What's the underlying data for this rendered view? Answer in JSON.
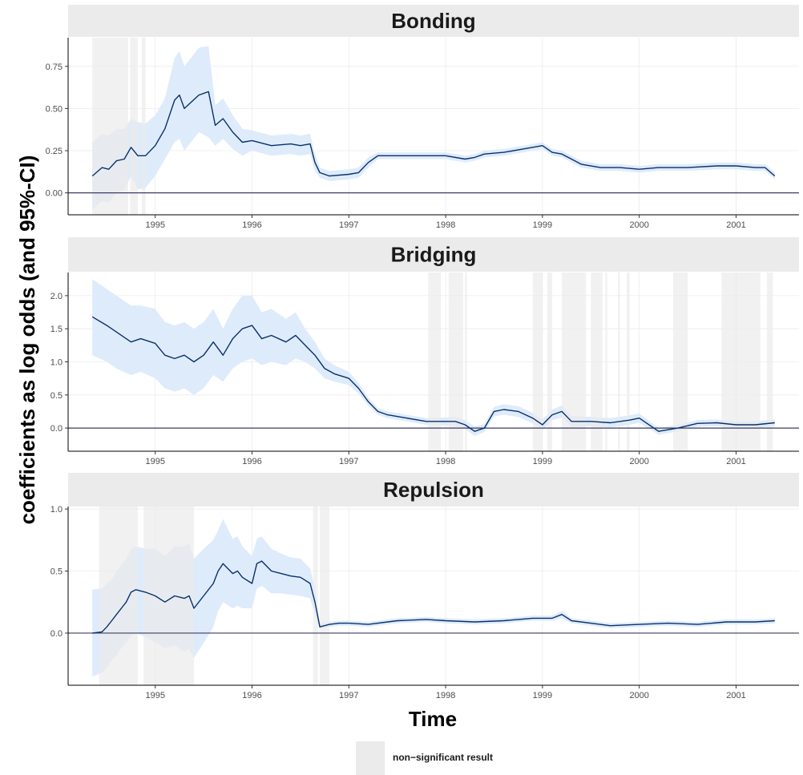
{
  "chart_data": {
    "type": "line",
    "xlabel": "Time",
    "ylabel": "coefficients as log odds (and 95%-CI)",
    "x_ticks": [
      "1995",
      "1996",
      "1997",
      "1998",
      "1999",
      "2000",
      "2001"
    ],
    "xlim": [
      1994.1,
      2001.65
    ],
    "legend": {
      "label": "non−significant result",
      "placement": "bottom"
    },
    "colors": {
      "line": "#08306b",
      "ribbon": "#deebfb",
      "nonsig": "#ebebeb",
      "strip": "#ebebeb",
      "zero": "#3c3c64",
      "grid": "#ebebeb"
    },
    "panels": [
      {
        "title": "Bonding",
        "ylim": [
          -0.13,
          0.92
        ],
        "y_ticks": [
          0.0,
          0.25,
          0.5,
          0.75
        ],
        "y_tick_labels": [
          "0.00",
          "0.25",
          "0.50",
          "0.75"
        ],
        "nonsig_ranges": [
          [
            1994.35,
            1994.72
          ],
          [
            1994.74,
            1994.82
          ],
          [
            1994.86,
            1994.9
          ]
        ],
        "x": [
          1994.35,
          1994.45,
          1994.52,
          1994.6,
          1994.68,
          1994.75,
          1994.82,
          1994.9,
          1995.0,
          1995.1,
          1995.2,
          1995.25,
          1995.3,
          1995.45,
          1995.55,
          1995.62,
          1995.7,
          1995.8,
          1995.9,
          1996.0,
          1996.2,
          1996.4,
          1996.5,
          1996.6,
          1996.65,
          1996.7,
          1996.8,
          1997.0,
          1997.1,
          1997.2,
          1997.3,
          1997.5,
          1997.8,
          1998.0,
          1998.2,
          1998.3,
          1998.4,
          1998.6,
          1998.8,
          1999.0,
          1999.1,
          1999.2,
          1999.3,
          1999.4,
          1999.6,
          1999.8,
          2000.0,
          2000.2,
          2000.5,
          2000.8,
          2001.0,
          2001.2,
          2001.3,
          2001.4
        ],
        "y": [
          0.1,
          0.15,
          0.14,
          0.19,
          0.2,
          0.27,
          0.22,
          0.22,
          0.28,
          0.38,
          0.55,
          0.58,
          0.5,
          0.58,
          0.6,
          0.4,
          0.44,
          0.36,
          0.3,
          0.31,
          0.28,
          0.29,
          0.28,
          0.29,
          0.18,
          0.12,
          0.1,
          0.11,
          0.12,
          0.18,
          0.22,
          0.22,
          0.22,
          0.22,
          0.2,
          0.21,
          0.23,
          0.24,
          0.26,
          0.28,
          0.24,
          0.23,
          0.2,
          0.17,
          0.15,
          0.15,
          0.14,
          0.15,
          0.15,
          0.16,
          0.16,
          0.15,
          0.15,
          0.1
        ],
        "lower": [
          -0.1,
          -0.05,
          -0.06,
          0.0,
          0.02,
          0.1,
          0.02,
          0.03,
          0.1,
          0.2,
          0.3,
          0.32,
          0.25,
          0.36,
          0.33,
          0.28,
          0.32,
          0.26,
          0.22,
          0.25,
          0.22,
          0.23,
          0.22,
          0.23,
          0.13,
          0.09,
          0.07,
          0.08,
          0.09,
          0.15,
          0.2,
          0.2,
          0.2,
          0.2,
          0.18,
          0.19,
          0.21,
          0.22,
          0.24,
          0.26,
          0.22,
          0.21,
          0.18,
          0.15,
          0.13,
          0.13,
          0.12,
          0.13,
          0.13,
          0.14,
          0.14,
          0.13,
          0.13,
          0.08
        ],
        "upper": [
          0.3,
          0.35,
          0.34,
          0.38,
          0.38,
          0.44,
          0.42,
          0.41,
          0.46,
          0.56,
          0.8,
          0.84,
          0.75,
          0.86,
          0.87,
          0.52,
          0.56,
          0.46,
          0.38,
          0.37,
          0.34,
          0.35,
          0.34,
          0.35,
          0.23,
          0.15,
          0.13,
          0.14,
          0.15,
          0.21,
          0.24,
          0.24,
          0.24,
          0.24,
          0.22,
          0.23,
          0.25,
          0.26,
          0.28,
          0.3,
          0.26,
          0.25,
          0.22,
          0.19,
          0.17,
          0.17,
          0.16,
          0.17,
          0.17,
          0.18,
          0.18,
          0.17,
          0.17,
          0.12
        ]
      },
      {
        "title": "Bridging",
        "ylim": [
          -0.35,
          2.35
        ],
        "y_ticks": [
          0.0,
          0.5,
          1.0,
          1.5,
          2.0
        ],
        "y_tick_labels": [
          "0.0",
          "0.5",
          "1.0",
          "1.5",
          "2.0"
        ],
        "nonsig_ranges": [
          [
            1997.82,
            1997.95
          ],
          [
            1998.03,
            1998.18
          ],
          [
            1998.2,
            1998.22
          ],
          [
            1998.9,
            1999.0
          ],
          [
            1999.05,
            1999.1
          ],
          [
            1999.2,
            1999.45
          ],
          [
            1999.5,
            1999.62
          ],
          [
            1999.65,
            1999.67
          ],
          [
            1999.78,
            1999.8
          ],
          [
            1999.87,
            1999.9
          ],
          [
            2000.35,
            2000.5
          ],
          [
            2000.85,
            2001.25
          ],
          [
            2001.32,
            2001.38
          ]
        ],
        "x": [
          1994.35,
          1994.5,
          1994.6,
          1994.75,
          1994.85,
          1995.0,
          1995.1,
          1995.2,
          1995.3,
          1995.4,
          1995.5,
          1995.6,
          1995.7,
          1995.8,
          1995.9,
          1996.0,
          1996.1,
          1996.2,
          1996.35,
          1996.45,
          1996.55,
          1996.65,
          1996.75,
          1996.85,
          1997.0,
          1997.1,
          1997.2,
          1997.3,
          1997.4,
          1997.6,
          1997.8,
          1998.0,
          1998.1,
          1998.2,
          1998.3,
          1998.4,
          1998.5,
          1998.6,
          1998.75,
          1998.9,
          1999.0,
          1999.1,
          1999.2,
          1999.3,
          1999.5,
          1999.7,
          1999.9,
          2000.0,
          2000.2,
          2000.4,
          2000.6,
          2000.8,
          2001.0,
          2001.2,
          2001.4
        ],
        "y": [
          1.68,
          1.55,
          1.45,
          1.3,
          1.35,
          1.28,
          1.1,
          1.05,
          1.1,
          1.0,
          1.1,
          1.3,
          1.1,
          1.35,
          1.5,
          1.55,
          1.35,
          1.4,
          1.3,
          1.4,
          1.25,
          1.1,
          0.9,
          0.82,
          0.75,
          0.6,
          0.4,
          0.25,
          0.2,
          0.15,
          0.1,
          0.1,
          0.1,
          0.05,
          -0.05,
          0.0,
          0.25,
          0.28,
          0.25,
          0.15,
          0.05,
          0.2,
          0.25,
          0.1,
          0.1,
          0.08,
          0.12,
          0.15,
          -0.05,
          0.0,
          0.07,
          0.08,
          0.05,
          0.05,
          0.08
        ],
        "lower": [
          1.1,
          1.0,
          0.9,
          0.8,
          0.85,
          0.75,
          0.6,
          0.55,
          0.6,
          0.5,
          0.6,
          0.8,
          0.7,
          0.9,
          1.0,
          1.05,
          0.95,
          1.0,
          0.95,
          1.05,
          1.0,
          0.9,
          0.75,
          0.7,
          0.65,
          0.52,
          0.34,
          0.2,
          0.15,
          0.1,
          0.05,
          0.04,
          0.03,
          -0.02,
          -0.12,
          -0.06,
          0.18,
          0.2,
          0.17,
          0.07,
          -0.03,
          0.12,
          0.16,
          0.02,
          0.03,
          0.01,
          0.05,
          0.08,
          -0.1,
          -0.05,
          0.02,
          0.03,
          0.0,
          0.0,
          0.03
        ],
        "upper": [
          2.25,
          2.1,
          2.0,
          1.85,
          1.85,
          1.8,
          1.6,
          1.55,
          1.6,
          1.5,
          1.6,
          1.8,
          1.5,
          1.8,
          2.0,
          2.0,
          1.75,
          1.8,
          1.65,
          1.75,
          1.5,
          1.3,
          1.05,
          0.95,
          0.85,
          0.68,
          0.46,
          0.3,
          0.25,
          0.2,
          0.15,
          0.16,
          0.17,
          0.12,
          0.02,
          0.06,
          0.32,
          0.36,
          0.33,
          0.23,
          0.13,
          0.28,
          0.34,
          0.18,
          0.17,
          0.15,
          0.19,
          0.22,
          0.0,
          0.05,
          0.12,
          0.13,
          0.1,
          0.1,
          0.13
        ]
      },
      {
        "title": "Repulsion",
        "ylim": [
          -0.42,
          1.02
        ],
        "y_ticks": [
          0.0,
          0.5,
          1.0
        ],
        "y_tick_labels": [
          "0.0",
          "0.5",
          "1.0"
        ],
        "nonsig_ranges": [
          [
            1994.42,
            1994.82
          ],
          [
            1994.88,
            1995.4
          ],
          [
            1996.63,
            1996.68
          ],
          [
            1996.7,
            1996.8
          ]
        ],
        "x": [
          1994.35,
          1994.45,
          1994.5,
          1994.55,
          1994.6,
          1994.65,
          1994.7,
          1994.75,
          1994.8,
          1994.9,
          1995.0,
          1995.1,
          1995.2,
          1995.3,
          1995.35,
          1995.4,
          1995.5,
          1995.6,
          1995.65,
          1995.7,
          1995.8,
          1995.85,
          1995.9,
          1996.0,
          1996.05,
          1996.1,
          1996.2,
          1996.3,
          1996.4,
          1996.5,
          1996.6,
          1996.65,
          1996.7,
          1996.8,
          1996.9,
          1997.0,
          1997.2,
          1997.5,
          1997.8,
          1998.0,
          1998.3,
          1998.6,
          1998.9,
          1999.1,
          1999.2,
          1999.3,
          1999.5,
          1999.7,
          2000.0,
          2000.3,
          2000.6,
          2000.9,
          2001.0,
          2001.2,
          2001.4
        ],
        "y": [
          0.0,
          0.01,
          0.05,
          0.1,
          0.15,
          0.2,
          0.25,
          0.33,
          0.35,
          0.33,
          0.3,
          0.25,
          0.3,
          0.28,
          0.3,
          0.2,
          0.3,
          0.4,
          0.5,
          0.56,
          0.48,
          0.5,
          0.45,
          0.4,
          0.56,
          0.58,
          0.5,
          0.48,
          0.46,
          0.45,
          0.4,
          0.25,
          0.05,
          0.07,
          0.08,
          0.08,
          0.07,
          0.1,
          0.11,
          0.1,
          0.09,
          0.1,
          0.12,
          0.12,
          0.15,
          0.1,
          0.08,
          0.06,
          0.07,
          0.08,
          0.07,
          0.09,
          0.09,
          0.09,
          0.1
        ],
        "lower": [
          -0.35,
          -0.32,
          -0.28,
          -0.22,
          -0.18,
          -0.12,
          -0.08,
          -0.02,
          0.0,
          -0.03,
          -0.08,
          -0.12,
          -0.1,
          -0.15,
          -0.13,
          -0.2,
          -0.08,
          0.05,
          0.18,
          0.25,
          0.2,
          0.22,
          0.2,
          0.2,
          0.36,
          0.38,
          0.32,
          0.32,
          0.31,
          0.3,
          0.28,
          0.15,
          0.03,
          0.05,
          0.06,
          0.06,
          0.05,
          0.08,
          0.09,
          0.08,
          0.07,
          0.08,
          0.1,
          0.1,
          0.12,
          0.08,
          0.06,
          0.04,
          0.05,
          0.06,
          0.05,
          0.07,
          0.07,
          0.07,
          0.08
        ],
        "upper": [
          0.35,
          0.36,
          0.4,
          0.43,
          0.5,
          0.55,
          0.6,
          0.68,
          0.7,
          0.68,
          0.68,
          0.62,
          0.7,
          0.7,
          0.73,
          0.6,
          0.68,
          0.75,
          0.83,
          0.92,
          0.76,
          0.78,
          0.7,
          0.62,
          0.76,
          0.78,
          0.68,
          0.64,
          0.61,
          0.6,
          0.52,
          0.36,
          0.08,
          0.09,
          0.1,
          0.1,
          0.09,
          0.12,
          0.13,
          0.12,
          0.11,
          0.12,
          0.14,
          0.14,
          0.18,
          0.12,
          0.1,
          0.08,
          0.09,
          0.1,
          0.09,
          0.11,
          0.11,
          0.11,
          0.12
        ]
      }
    ]
  }
}
